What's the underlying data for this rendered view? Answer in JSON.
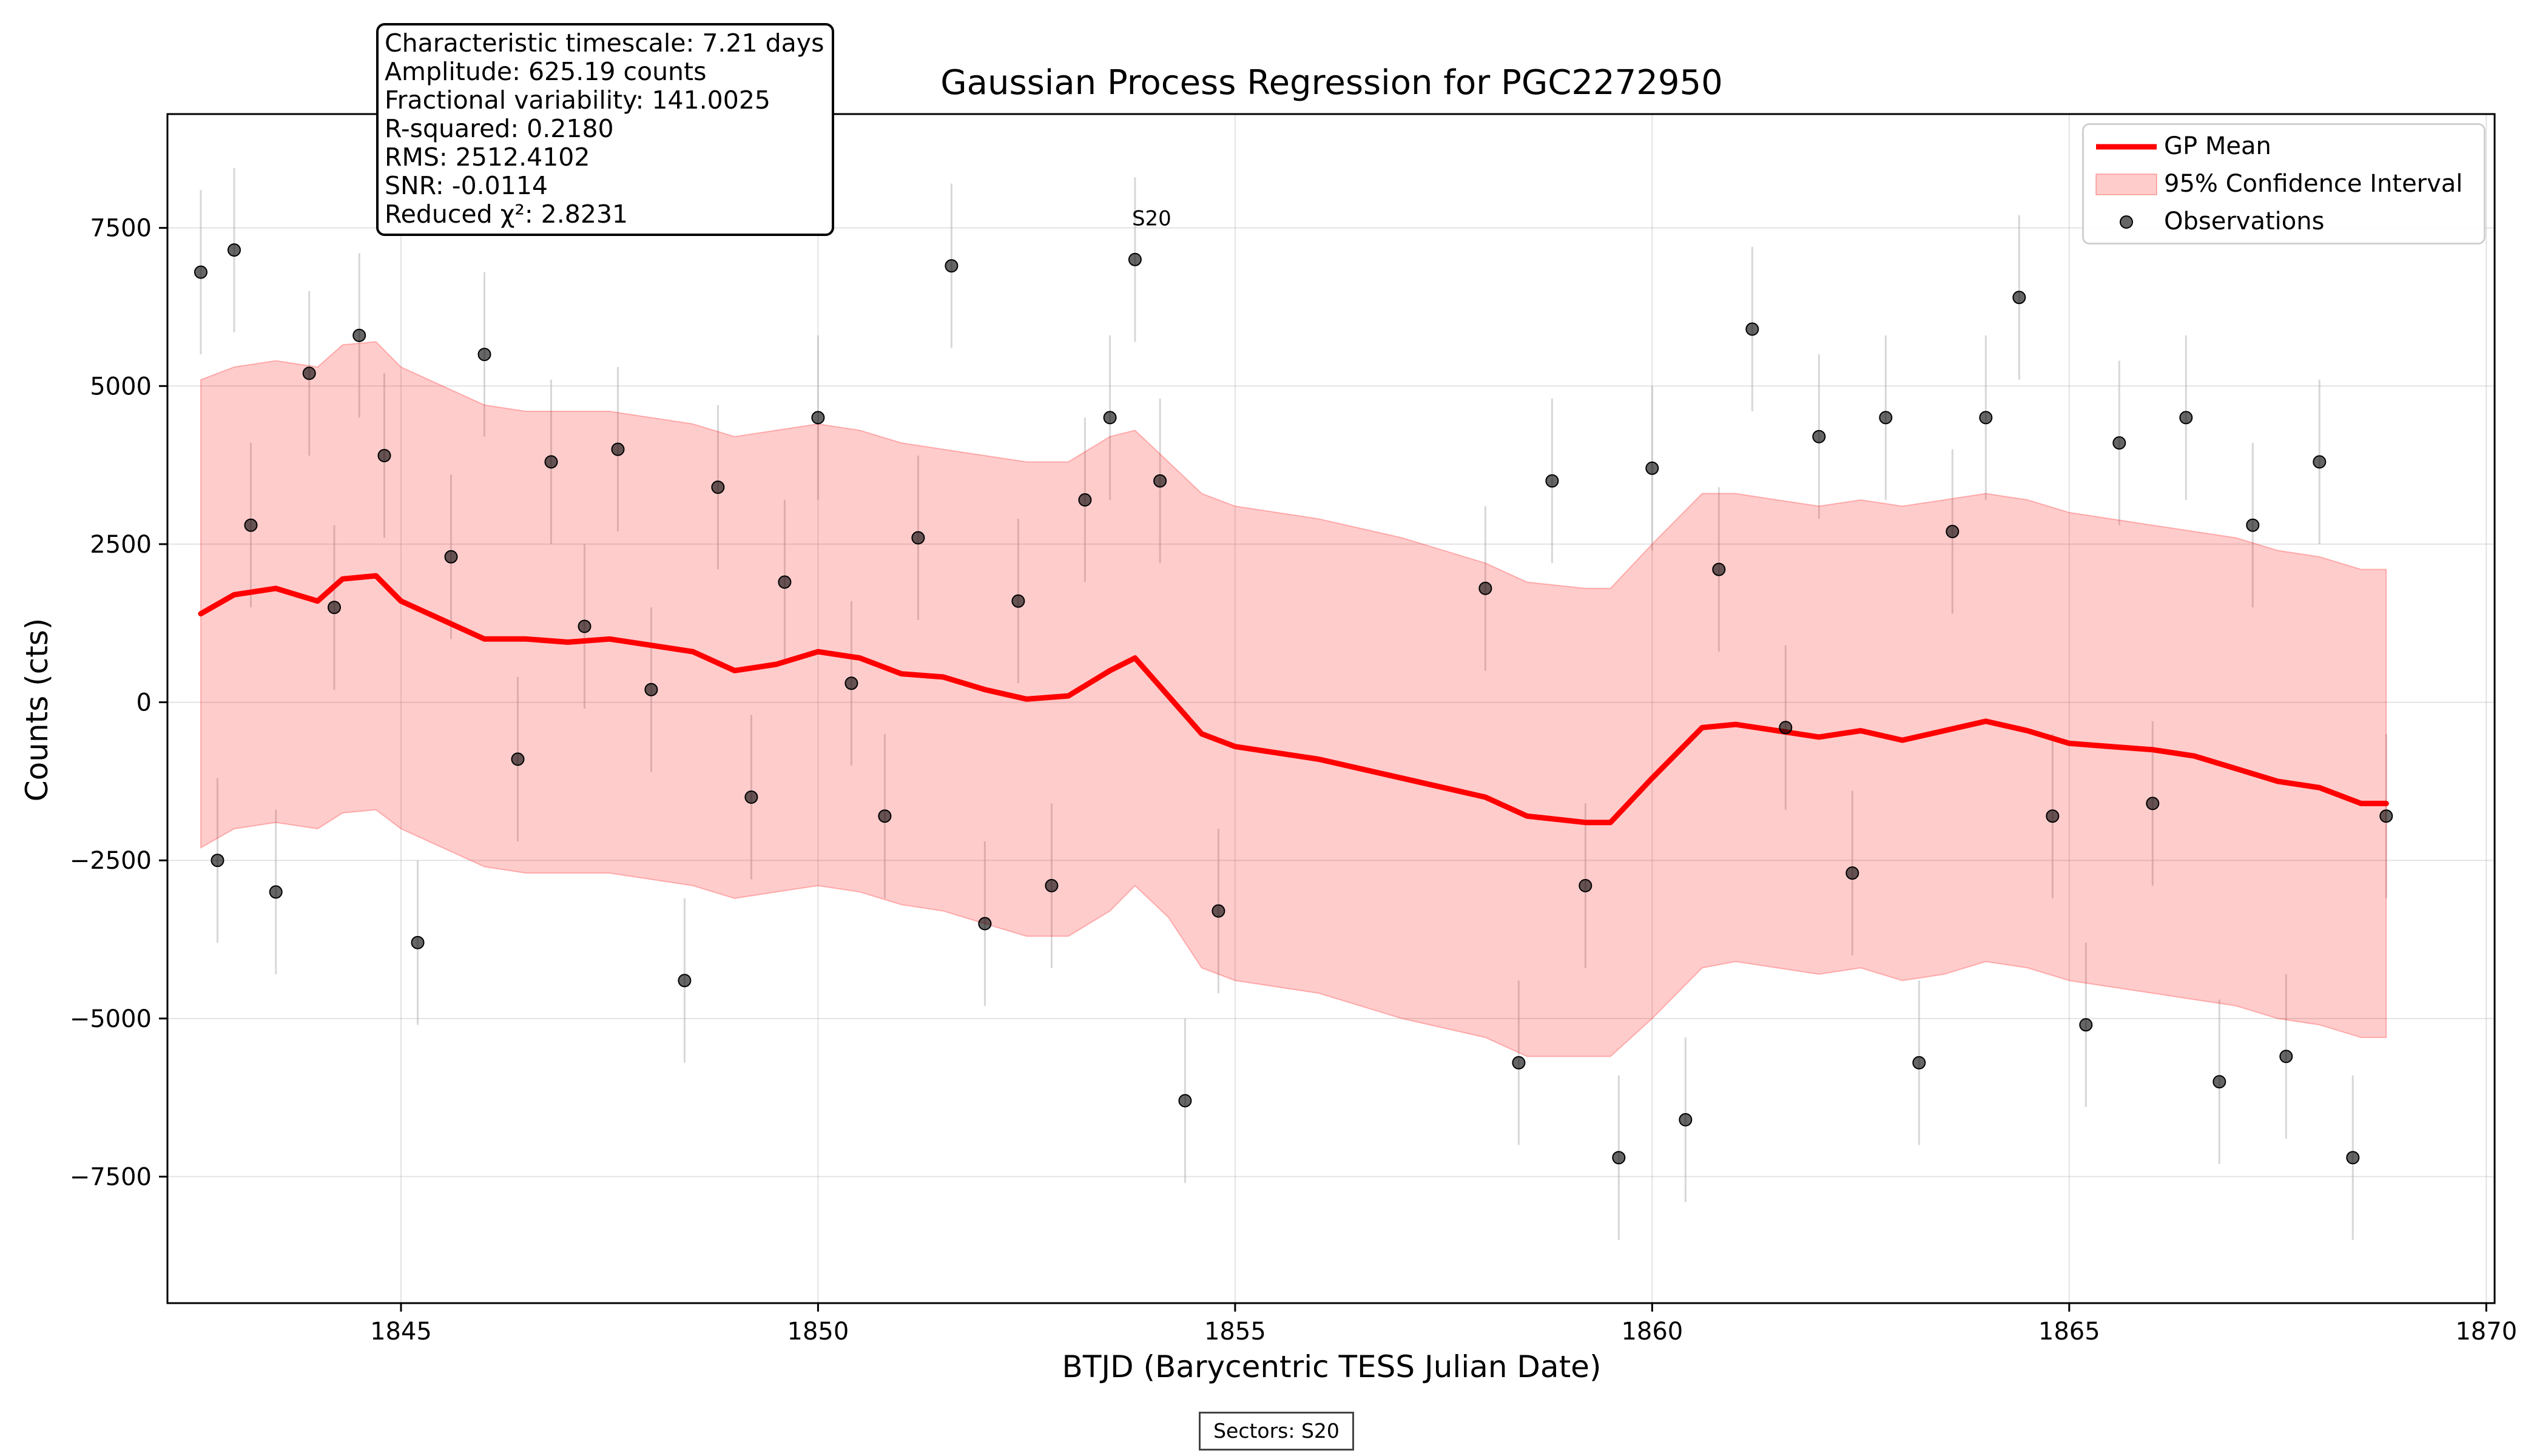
{
  "chart_data": {
    "type": "scatter",
    "title": "Gaussian Process Regression for PGC2272950",
    "xlabel": "BTJD (Barycentric TESS Julian Date)",
    "ylabel": "Counts (cts)",
    "xlim": [
      1842.2,
      1870.1
    ],
    "ylim": [
      -9500,
      9300
    ],
    "xticks": [
      1845,
      1850,
      1855,
      1860,
      1865,
      1870
    ],
    "yticks": [
      -7500,
      -5000,
      -2500,
      0,
      2500,
      5000,
      7500
    ],
    "ytick_labels": [
      "−7500",
      "−5000",
      "−2500",
      "0",
      "2500",
      "5000",
      "7500"
    ],
    "grid": true,
    "legend_position": "top-right",
    "legend": [
      "GP Mean",
      "95% Confidence Interval",
      "Observations"
    ],
    "annotation": "S20",
    "annotation_x": 1854.0,
    "annotation_y": 7500,
    "sector_label": "Sectors: S20",
    "stats": [
      "Characteristic timescale: 7.21 days",
      "Amplitude: 625.19 counts",
      "Fractional variability: 141.0025",
      "R-squared: 0.2180",
      "RMS: 2512.4102",
      "SNR: -0.0114",
      "Reduced χ²: 2.8231"
    ],
    "gp_mean": {
      "x": [
        1842.6,
        1843.0,
        1843.5,
        1844.0,
        1844.3,
        1844.7,
        1845.0,
        1845.5,
        1846.0,
        1846.5,
        1847.0,
        1847.5,
        1848.0,
        1848.5,
        1849.0,
        1849.5,
        1850.0,
        1850.5,
        1851.0,
        1851.5,
        1852.0,
        1852.5,
        1853.0,
        1853.5,
        1853.8,
        1854.2,
        1854.6,
        1855.0,
        1856.0,
        1857.0,
        1858.0,
        1858.5,
        1859.2,
        1859.5,
        1860.0,
        1860.6,
        1861.0,
        1861.5,
        1862.0,
        1862.5,
        1863.0,
        1863.5,
        1864.0,
        1864.5,
        1865.0,
        1865.5,
        1866.0,
        1866.5,
        1867.0,
        1867.5,
        1868.0,
        1868.5,
        1868.8
      ],
      "y": [
        1400,
        1700,
        1800,
        1600,
        1950,
        2000,
        1600,
        1300,
        1000,
        1000,
        950,
        1000,
        900,
        800,
        500,
        600,
        800,
        700,
        450,
        400,
        200,
        50,
        100,
        500,
        700,
        100,
        -500,
        -700,
        -900,
        -1200,
        -1500,
        -1800,
        -1900,
        -1900,
        -1200,
        -400,
        -350,
        -450,
        -550,
        -450,
        -600,
        -450,
        -300,
        -450,
        -650,
        -700,
        -750,
        -850,
        -1050,
        -1250,
        -1350,
        -1600,
        -1600
      ]
    },
    "ci_upper": [
      5100,
      5300,
      5400,
      5300,
      5650,
      5700,
      5300,
      5000,
      4700,
      4600,
      4600,
      4600,
      4500,
      4400,
      4200,
      4300,
      4400,
      4300,
      4100,
      4000,
      3900,
      3800,
      3800,
      4200,
      4300,
      3800,
      3300,
      3100,
      2900,
      2600,
      2200,
      1900,
      1800,
      1800,
      2500,
      3300,
      3300,
      3200,
      3100,
      3200,
      3100,
      3200,
      3300,
      3200,
      3000,
      2900,
      2800,
      2700,
      2600,
      2400,
      2300,
      2100,
      2100
    ],
    "ci_lower": [
      -2300,
      -2000,
      -1900,
      -2000,
      -1750,
      -1700,
      -2000,
      -2300,
      -2600,
      -2700,
      -2700,
      -2700,
      -2800,
      -2900,
      -3100,
      -3000,
      -2900,
      -3000,
      -3200,
      -3300,
      -3500,
      -3700,
      -3700,
      -3300,
      -2900,
      -3400,
      -4200,
      -4400,
      -4600,
      -5000,
      -5300,
      -5600,
      -5600,
      -5600,
      -5000,
      -4200,
      -4100,
      -4200,
      -4300,
      -4200,
      -4400,
      -4300,
      -4100,
      -4200,
      -4400,
      -4500,
      -4600,
      -4700,
      -4800,
      -5000,
      -5100,
      -5300,
      -5300
    ],
    "observations": {
      "x": [
        1842.6,
        1842.8,
        1843.0,
        1843.2,
        1843.5,
        1843.9,
        1844.2,
        1844.5,
        1844.8,
        1845.2,
        1845.6,
        1846.0,
        1846.4,
        1846.8,
        1847.2,
        1847.6,
        1848.0,
        1848.4,
        1848.8,
        1849.2,
        1849.6,
        1850.0,
        1850.4,
        1850.8,
        1851.2,
        1851.6,
        1852.0,
        1852.4,
        1852.8,
        1853.2,
        1853.5,
        1853.8,
        1854.1,
        1854.4,
        1854.8,
        1858.0,
        1858.4,
        1858.8,
        1859.2,
        1859.6,
        1860.0,
        1860.4,
        1860.8,
        1861.2,
        1861.6,
        1862.0,
        1862.4,
        1862.8,
        1863.2,
        1863.6,
        1864.0,
        1864.4,
        1864.8,
        1865.2,
        1865.6,
        1866.0,
        1866.4,
        1866.8,
        1867.2,
        1867.6,
        1868.0,
        1868.4,
        1868.8
      ],
      "y": [
        6800,
        -2500,
        7150,
        2800,
        -3000,
        5200,
        1500,
        5800,
        3900,
        -3800,
        2300,
        5500,
        -900,
        3800,
        1200,
        4000,
        200,
        -4400,
        3400,
        -1500,
        1900,
        4500,
        300,
        -1800,
        2600,
        6900,
        -3500,
        1600,
        -2900,
        3200,
        4500,
        7000,
        3500,
        -6300,
        -3300,
        1800,
        -5700,
        3500,
        -2900,
        -7200,
        3700,
        -6600,
        2100,
        5900,
        -400,
        4200,
        -2700,
        4500,
        -5700,
        2700,
        4500,
        6400,
        -1800,
        -5100,
        4100,
        -1600,
        4500,
        -6000,
        2800,
        -5600,
        3800,
        -7200,
        -1800
      ]
    }
  }
}
